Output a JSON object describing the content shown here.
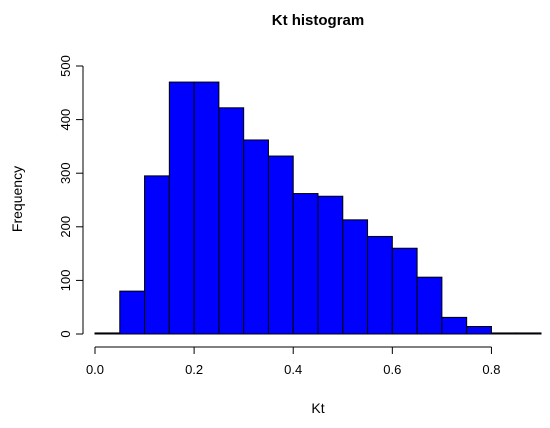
{
  "chart_data": {
    "type": "bar",
    "title": "Kt histogram",
    "xlabel": "Kt",
    "ylabel": "Frequency",
    "bin_edges": [
      0.0,
      0.05,
      0.1,
      0.15,
      0.2,
      0.25,
      0.3,
      0.35,
      0.4,
      0.45,
      0.5,
      0.55,
      0.6,
      0.65,
      0.7,
      0.75,
      0.8,
      0.85,
      0.9
    ],
    "values": [
      2,
      80,
      295,
      470,
      470,
      422,
      362,
      332,
      262,
      257,
      213,
      182,
      160,
      106,
      31,
      14,
      2,
      2
    ],
    "xlim": [
      0.0,
      0.9
    ],
    "ylim": [
      0,
      500
    ],
    "x_ticks": [
      "0.0",
      "0.2",
      "0.4",
      "0.6",
      "0.8"
    ],
    "y_ticks": [
      "0",
      "100",
      "200",
      "300",
      "400",
      "500"
    ],
    "bar_color": "#0000ff",
    "grid": false,
    "legend": "none"
  }
}
